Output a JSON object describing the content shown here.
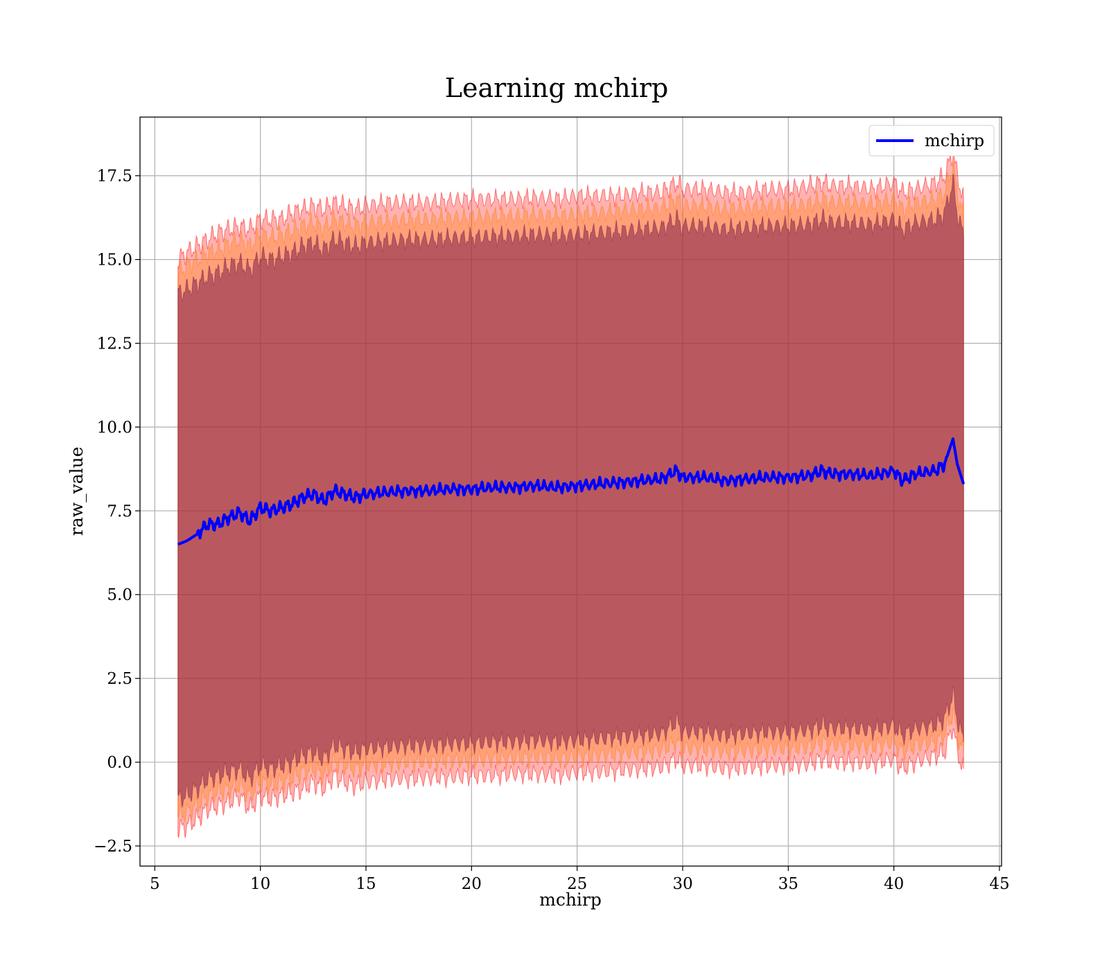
{
  "chart_data": {
    "type": "area",
    "title": "Learning mchirp",
    "xlabel": "mchirp",
    "ylabel": "raw_value",
    "xlim": [
      4.3,
      45.1
    ],
    "ylim": [
      -3.1,
      19.25
    ],
    "xticks": [
      5,
      10,
      15,
      20,
      25,
      30,
      35,
      40,
      45
    ],
    "xtick_labels": [
      "5",
      "10",
      "15",
      "20",
      "25",
      "30",
      "35",
      "40",
      "45"
    ],
    "yticks": [
      -2.5,
      0.0,
      2.5,
      5.0,
      7.5,
      10.0,
      12.5,
      15.0,
      17.5
    ],
    "ytick_labels": [
      "−2.5",
      "0.0",
      "2.5",
      "5.0",
      "7.5",
      "10.0",
      "12.5",
      "15.0",
      "17.5"
    ],
    "grid": true,
    "legend": {
      "position": "top-right",
      "entries": [
        "mchirp"
      ]
    },
    "series": [
      {
        "name": "mchirp",
        "color": "#0000ff",
        "x": [
          6.1,
          6.5,
          7.0,
          7.5,
          8.0,
          8.5,
          9.0,
          9.5,
          10.0,
          10.5,
          11.0,
          11.5,
          12.0,
          12.5,
          13.0,
          13.5,
          14.0,
          14.5,
          15.0,
          16.0,
          17.0,
          18.0,
          19.0,
          20.0,
          21.0,
          22.0,
          23.0,
          24.0,
          25.0,
          26.0,
          27.0,
          28.0,
          29.0,
          29.7,
          30.0,
          31.0,
          32.0,
          33.0,
          34.0,
          35.0,
          36.0,
          36.6,
          37.0,
          38.0,
          39.0,
          40.0,
          40.4,
          41.0,
          42.0,
          42.4,
          42.8,
          43.0,
          43.3
        ],
        "values": [
          6.5,
          6.6,
          6.8,
          7.1,
          7.1,
          7.3,
          7.45,
          7.2,
          7.6,
          7.5,
          7.6,
          7.7,
          7.9,
          8.0,
          7.8,
          8.1,
          8.0,
          7.9,
          8.0,
          8.05,
          8.1,
          8.1,
          8.15,
          8.15,
          8.2,
          8.2,
          8.25,
          8.2,
          8.25,
          8.3,
          8.35,
          8.4,
          8.45,
          8.7,
          8.5,
          8.5,
          8.4,
          8.45,
          8.5,
          8.5,
          8.55,
          8.7,
          8.6,
          8.6,
          8.55,
          8.7,
          8.4,
          8.6,
          8.7,
          8.9,
          9.65,
          8.9,
          8.3
        ]
      }
    ],
    "bands": [
      {
        "color": "#ff0000",
        "opacity": 0.3,
        "x": [
          6.1,
          6.5,
          7.0,
          7.5,
          8.0,
          8.5,
          9.0,
          9.5,
          10.0,
          10.5,
          11.0,
          11.5,
          12.0,
          12.5,
          13.0,
          13.5,
          14.0,
          14.5,
          15.0,
          16.0,
          17.0,
          18.0,
          19.0,
          20.0,
          21.0,
          22.0,
          23.0,
          24.0,
          25.0,
          26.0,
          27.0,
          28.0,
          29.0,
          29.7,
          30.0,
          31.0,
          32.0,
          33.0,
          34.0,
          35.0,
          36.0,
          36.6,
          37.0,
          38.0,
          39.0,
          40.0,
          40.4,
          41.0,
          42.0,
          42.4,
          42.8,
          43.0,
          43.3
        ],
        "upper": [
          15.0,
          15.2,
          15.4,
          15.6,
          15.8,
          15.9,
          16.0,
          15.9,
          16.2,
          16.2,
          16.2,
          16.4,
          16.5,
          16.6,
          16.5,
          16.7,
          16.6,
          16.5,
          16.6,
          16.7,
          16.7,
          16.7,
          16.75,
          16.8,
          16.8,
          16.8,
          16.85,
          16.8,
          16.9,
          16.9,
          16.9,
          17.0,
          17.0,
          17.3,
          17.1,
          17.1,
          17.0,
          17.0,
          17.1,
          17.1,
          17.2,
          17.3,
          17.2,
          17.2,
          17.1,
          17.3,
          17.0,
          17.1,
          17.3,
          17.5,
          18.2,
          17.5,
          16.8
        ],
        "lower": [
          -2.0,
          -1.9,
          -1.7,
          -1.4,
          -1.3,
          -1.2,
          -1.0,
          -1.4,
          -1.0,
          -1.1,
          -1.0,
          -0.9,
          -0.8,
          -0.6,
          -0.8,
          -0.4,
          -0.6,
          -0.7,
          -0.6,
          -0.5,
          -0.5,
          -0.45,
          -0.45,
          -0.4,
          -0.4,
          -0.35,
          -0.35,
          -0.4,
          -0.3,
          -0.3,
          -0.25,
          -0.2,
          -0.15,
          0.1,
          -0.1,
          -0.1,
          -0.2,
          -0.15,
          -0.1,
          -0.1,
          -0.05,
          0.1,
          0.0,
          0.0,
          -0.05,
          0.1,
          -0.2,
          0.0,
          0.2,
          0.3,
          1.1,
          0.3,
          -0.2
        ]
      },
      {
        "color": "#ff7f0e",
        "opacity": 0.35,
        "x": [
          6.1,
          6.5,
          7.0,
          7.5,
          8.0,
          8.5,
          9.0,
          9.5,
          10.0,
          10.5,
          11.0,
          11.5,
          12.0,
          12.5,
          13.0,
          13.5,
          14.0,
          14.5,
          15.0,
          16.0,
          17.0,
          18.0,
          19.0,
          20.0,
          21.0,
          22.0,
          23.0,
          24.0,
          25.0,
          26.0,
          27.0,
          28.0,
          29.0,
          29.7,
          30.0,
          31.0,
          32.0,
          33.0,
          34.0,
          35.0,
          36.0,
          36.6,
          37.0,
          38.0,
          39.0,
          40.0,
          40.4,
          41.0,
          42.0,
          42.4,
          42.8,
          43.0,
          43.3
        ],
        "upper": [
          14.6,
          14.8,
          15.0,
          15.2,
          15.3,
          15.45,
          15.6,
          15.4,
          15.75,
          15.65,
          15.75,
          15.85,
          16.0,
          16.1,
          15.95,
          16.2,
          16.1,
          16.0,
          16.1,
          16.15,
          16.2,
          16.2,
          16.25,
          16.25,
          16.3,
          16.3,
          16.35,
          16.3,
          16.35,
          16.4,
          16.45,
          16.5,
          16.55,
          16.8,
          16.6,
          16.6,
          16.5,
          16.55,
          16.6,
          16.6,
          16.65,
          16.8,
          16.7,
          16.7,
          16.65,
          16.8,
          16.5,
          16.7,
          16.8,
          17.0,
          17.8,
          17.0,
          16.3
        ],
        "lower": [
          -1.6,
          -1.5,
          -1.3,
          -1.0,
          -0.9,
          -0.8,
          -0.7,
          -1.0,
          -0.6,
          -0.7,
          -0.6,
          -0.5,
          -0.3,
          -0.2,
          -0.4,
          0.0,
          -0.1,
          -0.2,
          -0.1,
          -0.05,
          0.0,
          0.0,
          0.05,
          0.05,
          0.1,
          0.1,
          0.15,
          0.1,
          0.15,
          0.2,
          0.25,
          0.3,
          0.35,
          0.6,
          0.4,
          0.4,
          0.3,
          0.35,
          0.4,
          0.4,
          0.45,
          0.6,
          0.5,
          0.5,
          0.45,
          0.6,
          0.3,
          0.5,
          0.6,
          0.8,
          1.5,
          0.8,
          0.3
        ]
      },
      {
        "color": "#7f1f4a",
        "opacity": 0.55,
        "x": [
          6.1,
          6.5,
          7.0,
          7.5,
          8.0,
          8.5,
          9.0,
          9.5,
          10.0,
          10.5,
          11.0,
          11.5,
          12.0,
          12.5,
          13.0,
          13.5,
          14.0,
          14.5,
          15.0,
          16.0,
          17.0,
          18.0,
          19.0,
          20.0,
          21.0,
          22.0,
          23.0,
          24.0,
          25.0,
          26.0,
          27.0,
          28.0,
          29.0,
          29.7,
          30.0,
          31.0,
          32.0,
          33.0,
          34.0,
          35.0,
          36.0,
          36.6,
          37.0,
          38.0,
          39.0,
          40.0,
          40.4,
          41.0,
          42.0,
          42.4,
          42.8,
          43.0,
          43.3
        ],
        "upper": [
          14.0,
          14.1,
          14.3,
          14.5,
          14.6,
          14.8,
          14.9,
          14.7,
          15.1,
          15.0,
          15.1,
          15.2,
          15.4,
          15.5,
          15.3,
          15.6,
          15.5,
          15.4,
          15.5,
          15.55,
          15.6,
          15.6,
          15.65,
          15.65,
          15.7,
          15.7,
          15.75,
          15.7,
          15.75,
          15.8,
          15.85,
          15.9,
          15.95,
          16.2,
          16.0,
          16.0,
          15.9,
          15.95,
          16.0,
          16.0,
          16.05,
          16.2,
          16.1,
          16.1,
          16.05,
          16.2,
          15.9,
          16.1,
          16.2,
          16.4,
          17.3,
          16.4,
          15.7
        ],
        "lower": [
          -1.1,
          -1.0,
          -0.8,
          -0.5,
          -0.4,
          -0.3,
          -0.2,
          -0.5,
          -0.1,
          -0.2,
          -0.1,
          0.0,
          0.2,
          0.3,
          0.1,
          0.5,
          0.4,
          0.3,
          0.4,
          0.45,
          0.5,
          0.5,
          0.55,
          0.55,
          0.6,
          0.6,
          0.65,
          0.6,
          0.65,
          0.7,
          0.75,
          0.8,
          0.85,
          1.2,
          0.9,
          0.9,
          0.8,
          0.85,
          0.9,
          0.9,
          0.95,
          1.1,
          1.0,
          1.0,
          0.95,
          1.1,
          0.8,
          1.0,
          1.1,
          1.3,
          2.0,
          1.3,
          0.6
        ]
      }
    ]
  }
}
